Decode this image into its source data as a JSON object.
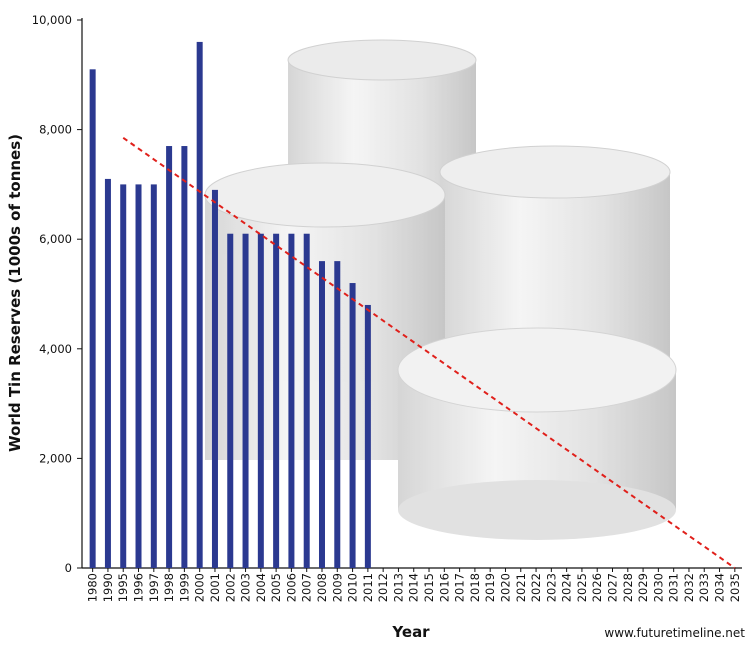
{
  "chart_data": {
    "type": "bar",
    "y_label": "World Tin Reserves (1000s of tonnes)",
    "x_label": "Year",
    "source": "www.futuretimeline.net",
    "categories": [
      "1980",
      "1990",
      "1995",
      "1996",
      "1997",
      "1998",
      "1999",
      "2000",
      "2001",
      "2002",
      "2003",
      "2004",
      "2005",
      "2006",
      "2007",
      "2008",
      "2009",
      "2010",
      "2011",
      "2012",
      "2013",
      "2014",
      "2015",
      "2016",
      "2017",
      "2018",
      "2019",
      "2020",
      "2021",
      "2022",
      "2023",
      "2024",
      "2025",
      "2026",
      "2027",
      "2028",
      "2029",
      "2030",
      "2031",
      "2032",
      "2033",
      "2034",
      "2035"
    ],
    "values": [
      9100,
      7100,
      7000,
      7000,
      7000,
      7700,
      7700,
      9600,
      6900,
      6100,
      6100,
      6100,
      6100,
      6100,
      6100,
      5600,
      5600,
      5200,
      4800,
      null,
      null,
      null,
      null,
      null,
      null,
      null,
      null,
      null,
      null,
      null,
      null,
      null,
      null,
      null,
      null,
      null,
      null,
      null,
      null,
      null,
      null,
      null,
      null
    ],
    "color": "#2b3990",
    "trend": {
      "color": "#e0201b",
      "categories": [
        "1995",
        "2035"
      ],
      "values": [
        7850,
        0
      ]
    },
    "ylim": [
      0,
      10000
    ],
    "yticks": [
      0,
      {
        "value": 2000,
        "label": "2,000"
      },
      {
        "value": 4000,
        "label": "4,000"
      },
      {
        "value": 6000,
        "label": "6,000"
      },
      {
        "value": 8000,
        "label": "8,000"
      },
      {
        "value": 10000,
        "label": "10,000"
      }
    ],
    "grid": false
  }
}
